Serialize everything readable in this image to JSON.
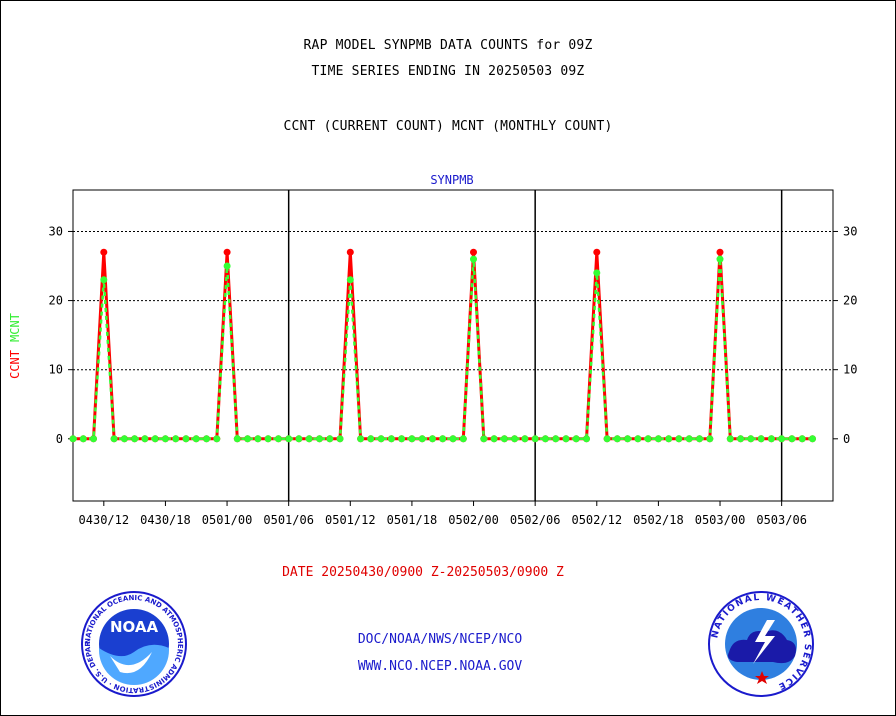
{
  "header": {
    "title_line1": "RAP MODEL SYNPMB DATA COUNTS for 09Z",
    "title_line2": "TIME SERIES ENDING IN 20250503 09Z",
    "legend_line": "CCNT (CURRENT COUNT) MCNT (MONTHLY COUNT)"
  },
  "footer": {
    "date_range": "DATE 20250430/0900 Z-20250503/0900 Z",
    "credit_line1": "DOC/NOAA/NWS/NCEP/NCO",
    "credit_line2": "WWW.NCO.NCEP.NOAA.GOV"
  },
  "logos": {
    "left": {
      "icon": "noaa-logo-icon",
      "text": "NOAA",
      "ring_text": "NATIONAL OCEANIC AND ATMOSPHERIC ADMINISTRATION · U.S. DEPARTMENT OF COMMERCE"
    },
    "right": {
      "icon": "nws-logo-icon",
      "ring_text": "NATIONAL WEATHER SERVICE"
    }
  },
  "colors": {
    "ccnt": "#ff0000",
    "mcnt": "#33ff33",
    "panel_title": "#1a1acc",
    "date_text": "#e00000"
  },
  "chart_data": {
    "type": "line",
    "panel_title": "SYNPMB",
    "ylabel_series": [
      "CCNT",
      "MCNT"
    ],
    "ylim": [
      -9,
      36
    ],
    "yticks": [
      0,
      10,
      20,
      30
    ],
    "xlim": [
      0,
      74
    ],
    "x_unit": "hours from 0430/09",
    "x_tick_positions": [
      3,
      9,
      15,
      21,
      27,
      33,
      39,
      45,
      51,
      57,
      63,
      69
    ],
    "x_tick_labels": [
      "0430/12",
      "0430/18",
      "0501/00",
      "0501/06",
      "0501/12",
      "0501/18",
      "0502/00",
      "0502/06",
      "0502/12",
      "0502/18",
      "0503/00",
      "0503/06"
    ],
    "day_boundaries": [
      21,
      45,
      69
    ],
    "grid_y": true,
    "x": [
      0,
      1,
      2,
      3,
      4,
      5,
      6,
      7,
      8,
      9,
      10,
      11,
      12,
      13,
      14,
      15,
      16,
      17,
      18,
      19,
      20,
      21,
      22,
      23,
      24,
      25,
      26,
      27,
      28,
      29,
      30,
      31,
      32,
      33,
      34,
      35,
      36,
      37,
      38,
      39,
      40,
      41,
      42,
      43,
      44,
      45,
      46,
      47,
      48,
      49,
      50,
      51,
      52,
      53,
      54,
      55,
      56,
      57,
      58,
      59,
      60,
      61,
      62,
      63,
      64,
      65,
      66,
      67,
      68,
      69,
      70,
      71,
      72
    ],
    "series": [
      {
        "name": "CCNT",
        "color": "#ff0000",
        "values": [
          0,
          0,
          0,
          27,
          0,
          0,
          0,
          0,
          0,
          0,
          0,
          0,
          0,
          0,
          0,
          27,
          0,
          0,
          0,
          0,
          0,
          0,
          0,
          0,
          0,
          0,
          0,
          27,
          0,
          0,
          0,
          0,
          0,
          0,
          0,
          0,
          0,
          0,
          0,
          27,
          0,
          0,
          0,
          0,
          0,
          0,
          0,
          0,
          0,
          0,
          0,
          27,
          0,
          0,
          0,
          0,
          0,
          0,
          0,
          0,
          0,
          0,
          0,
          27,
          0,
          0,
          0,
          0,
          0,
          0,
          0,
          0,
          0
        ]
      },
      {
        "name": "MCNT",
        "color": "#33ff33",
        "values": [
          0,
          0,
          0,
          23,
          0,
          0,
          0,
          0,
          0,
          0,
          0,
          0,
          0,
          0,
          0,
          25,
          0,
          0,
          0,
          0,
          0,
          0,
          0,
          0,
          0,
          0,
          0,
          23,
          0,
          0,
          0,
          0,
          0,
          0,
          0,
          0,
          0,
          0,
          0,
          26,
          0,
          0,
          0,
          0,
          0,
          0,
          0,
          0,
          0,
          0,
          0,
          24,
          0,
          0,
          0,
          0,
          0,
          0,
          0,
          0,
          0,
          0,
          0,
          26,
          0,
          0,
          0,
          0,
          0,
          0,
          0,
          0,
          0
        ]
      }
    ]
  }
}
